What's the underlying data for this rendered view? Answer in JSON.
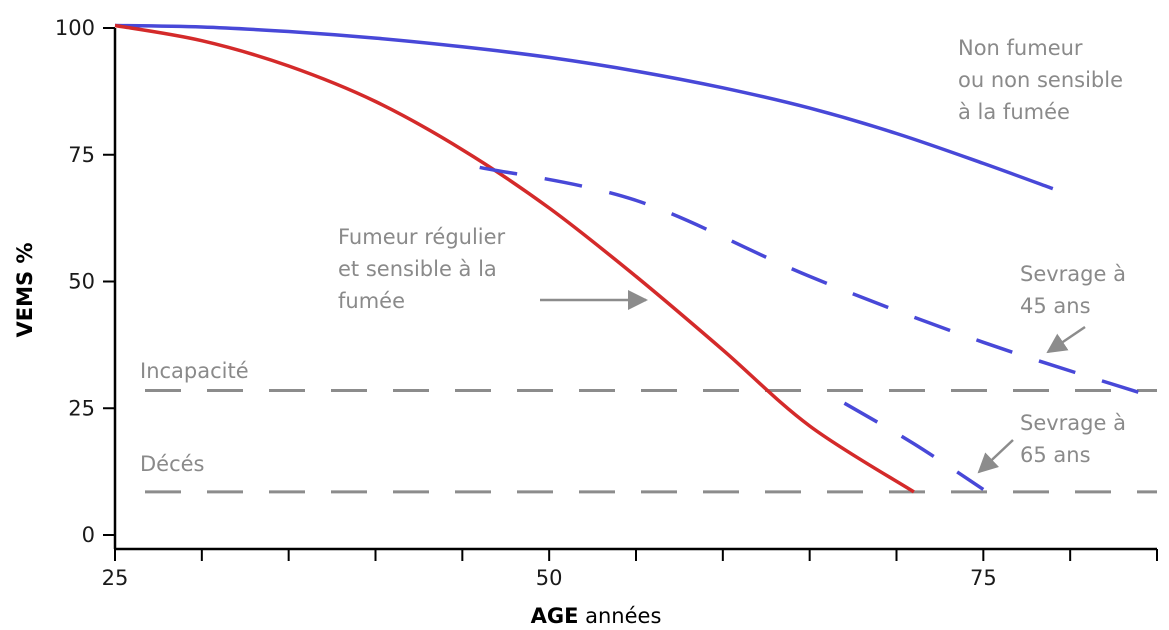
{
  "chart_data": {
    "type": "line",
    "title": "",
    "ylabel": "VEMS %",
    "xlabel_bold": "AGE",
    "xlabel_rest": " années",
    "xlim": [
      25,
      85
    ],
    "ylim": [
      0,
      100
    ],
    "x_ticks": [
      25,
      50,
      75
    ],
    "x_minor_ticks": [
      30,
      35,
      40,
      45,
      55,
      60,
      65,
      70,
      80,
      85
    ],
    "y_ticks": [
      0,
      25,
      50,
      75,
      100
    ],
    "grid": false,
    "colors": {
      "non_smoker": "#4848d8",
      "smoker": "#d42a2a",
      "cessation": "#4848d8",
      "threshold": "#8c8c8c",
      "annotation_text": "#8a8a8a",
      "axis": "#000000"
    },
    "series": [
      {
        "key": "non_smoker",
        "style": "solid",
        "points": [
          [
            25,
            100.5
          ],
          [
            30,
            100.2
          ],
          [
            35,
            99.3
          ],
          [
            40,
            98
          ],
          [
            45,
            96.3
          ],
          [
            50,
            94.2
          ],
          [
            55,
            91.5
          ],
          [
            60,
            88.2
          ],
          [
            65,
            84.2
          ],
          [
            70,
            79.2
          ],
          [
            75,
            73.3
          ],
          [
            79,
            68.3
          ]
        ]
      },
      {
        "key": "smoker",
        "style": "solid",
        "points": [
          [
            25,
            100.5
          ],
          [
            30,
            97.5
          ],
          [
            35,
            92.5
          ],
          [
            40,
            85.5
          ],
          [
            45,
            76
          ],
          [
            50,
            64.5
          ],
          [
            55,
            51
          ],
          [
            60,
            36.5
          ],
          [
            65,
            21.5
          ],
          [
            71,
            8.5
          ]
        ]
      },
      {
        "key": "cessation_45",
        "style": "dashed",
        "points": [
          [
            46,
            72.5
          ],
          [
            55,
            66
          ],
          [
            65,
            51
          ],
          [
            75,
            38
          ],
          [
            85,
            27
          ]
        ]
      },
      {
        "key": "cessation_65",
        "style": "dashed",
        "points": [
          [
            67,
            26
          ],
          [
            71,
            18
          ],
          [
            75,
            9
          ]
        ]
      }
    ],
    "thresholds": [
      {
        "label": "Incapacité",
        "y": 28.5
      },
      {
        "label": "Décés",
        "y": 8.5
      }
    ],
    "annotations": {
      "non_smoker": [
        "Non fumeur",
        "ou non sensible",
        "à la fumée"
      ],
      "smoker": [
        "Fumeur régulier",
        "et sensible à la",
        "fumée"
      ],
      "cessation_45": [
        "Sevrage à",
        "45 ans"
      ],
      "cessation_65": [
        "Sevrage à",
        "65 ans"
      ]
    }
  }
}
